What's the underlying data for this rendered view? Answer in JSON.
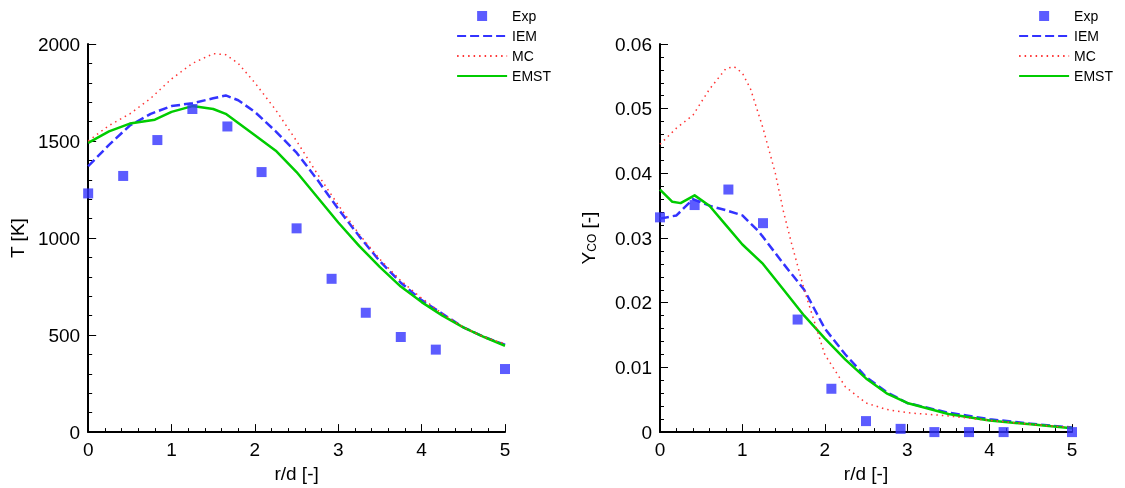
{
  "chart_data": [
    {
      "type": "line",
      "xlabel": "r/d [-]",
      "ylabel": "T [K]",
      "xlim": [
        0,
        5
      ],
      "xticks": [
        0,
        1,
        2,
        3,
        4,
        5
      ],
      "ylim": [
        0,
        2000
      ],
      "yticks": [
        0,
        500,
        1000,
        1500,
        2000
      ],
      "grid": false,
      "legend": "top right",
      "series": [
        {
          "name": "Exp",
          "type": "scatter",
          "marker": "square",
          "color": "#3333ff",
          "x": [
            0,
            0.42,
            0.83,
            1.25,
            1.67,
            2.08,
            2.5,
            2.92,
            3.33,
            3.75,
            4.17,
            5
          ],
          "values": [
            1230,
            1320,
            1505,
            1665,
            1575,
            1340,
            1050,
            790,
            615,
            490,
            425,
            325
          ]
        },
        {
          "name": "IEM",
          "type": "line",
          "marker": "none",
          "line_style": "dashed",
          "color": "#3333ff",
          "x": [
            0,
            0.25,
            0.5,
            0.75,
            1,
            1.25,
            1.5,
            1.65,
            1.8,
            2,
            2.25,
            2.5,
            2.75,
            3,
            3.25,
            3.5,
            3.75,
            4,
            4.25,
            4.5,
            4.75,
            5
          ],
          "values": [
            1370,
            1480,
            1580,
            1640,
            1680,
            1695,
            1720,
            1735,
            1710,
            1650,
            1550,
            1440,
            1300,
            1150,
            1010,
            880,
            770,
            680,
            610,
            540,
            490,
            450
          ]
        },
        {
          "name": "MC",
          "type": "line",
          "marker": "none",
          "line_style": "dotted",
          "color": "#ff3333",
          "x": [
            0,
            0.25,
            0.5,
            0.75,
            1,
            1.25,
            1.5,
            1.65,
            1.8,
            2,
            2.25,
            2.5,
            2.75,
            3,
            3.25,
            3.5,
            3.75,
            4,
            4.25,
            4.5,
            4.75,
            5
          ],
          "values": [
            1500,
            1580,
            1640,
            1720,
            1820,
            1900,
            1950,
            1945,
            1900,
            1800,
            1660,
            1500,
            1330,
            1170,
            1020,
            890,
            780,
            690,
            610,
            540,
            490,
            455
          ]
        },
        {
          "name": "EMST",
          "type": "line",
          "marker": "none",
          "line_style": "solid",
          "color": "#00cc00",
          "x": [
            0,
            0.25,
            0.5,
            0.8,
            1,
            1.25,
            1.5,
            1.65,
            2,
            2.25,
            2.5,
            2.75,
            3,
            3.25,
            3.5,
            3.75,
            4,
            4.25,
            4.5,
            4.75,
            5
          ],
          "values": [
            1490,
            1550,
            1590,
            1610,
            1650,
            1680,
            1665,
            1640,
            1530,
            1450,
            1340,
            1210,
            1080,
            960,
            850,
            750,
            670,
            600,
            540,
            490,
            445
          ]
        }
      ]
    },
    {
      "type": "line",
      "xlabel": "r/d [-]",
      "ylabel": "Y$_{CO}$ [-]",
      "xlim": [
        0,
        5
      ],
      "xticks": [
        0,
        1,
        2,
        3,
        4,
        5
      ],
      "ylim": [
        0,
        0.06
      ],
      "yticks": [
        0,
        0.01,
        0.02,
        0.03,
        0.04,
        0.05,
        0.06
      ],
      "grid": false,
      "legend": "top right",
      "series": [
        {
          "name": "Exp",
          "type": "scatter",
          "marker": "square",
          "color": "#3333ff",
          "x": [
            0,
            0.42,
            0.83,
            1.25,
            1.67,
            2.08,
            2.5,
            2.92,
            3.33,
            3.75,
            4.17,
            5
          ],
          "values": [
            0.0332,
            0.0351,
            0.0375,
            0.0323,
            0.0174,
            0.0067,
            0.0017,
            0.0005,
            0,
            0,
            0,
            0
          ]
        },
        {
          "name": "IEM",
          "type": "line",
          "marker": "none",
          "line_style": "dashed",
          "color": "#3333ff",
          "x": [
            0,
            0.2,
            0.4,
            0.6,
            0.8,
            1,
            1.2,
            1.5,
            1.75,
            2,
            2.25,
            2.5,
            2.75,
            3,
            3.5,
            4,
            4.5,
            5
          ],
          "values": [
            0.033,
            0.0335,
            0.036,
            0.035,
            0.0343,
            0.0335,
            0.031,
            0.026,
            0.022,
            0.016,
            0.012,
            0.0085,
            0.0062,
            0.0045,
            0.003,
            0.002,
            0.0013,
            0.0007
          ]
        },
        {
          "name": "MC",
          "type": "line",
          "marker": "none",
          "line_style": "dotted",
          "color": "#ff3333",
          "x": [
            0,
            0.2,
            0.4,
            0.6,
            0.8,
            0.9,
            1,
            1.1,
            1.25,
            1.4,
            1.5,
            1.6,
            1.75,
            1.9,
            2,
            2.25,
            2.5,
            2.75,
            3,
            3.5,
            4,
            4.5,
            5
          ],
          "values": [
            0.0445,
            0.047,
            0.049,
            0.053,
            0.0562,
            0.0565,
            0.0555,
            0.053,
            0.047,
            0.04,
            0.034,
            0.029,
            0.022,
            0.016,
            0.012,
            0.007,
            0.0045,
            0.0035,
            0.003,
            0.0025,
            0.0018,
            0.0012,
            0.0007
          ]
        },
        {
          "name": "EMST",
          "type": "line",
          "marker": "none",
          "line_style": "solid",
          "color": "#00cc00",
          "x": [
            0,
            0.15,
            0.25,
            0.42,
            0.6,
            0.8,
            1,
            1.25,
            1.5,
            1.75,
            2,
            2.25,
            2.5,
            2.75,
            3,
            3.5,
            4,
            4.5,
            5
          ],
          "values": [
            0.0375,
            0.0356,
            0.0354,
            0.0366,
            0.035,
            0.032,
            0.029,
            0.026,
            0.022,
            0.018,
            0.0145,
            0.0112,
            0.0083,
            0.006,
            0.0045,
            0.0028,
            0.0018,
            0.0012,
            0.0006
          ]
        }
      ]
    }
  ]
}
